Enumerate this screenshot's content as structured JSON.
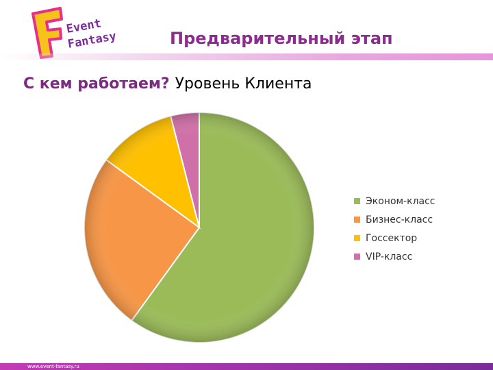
{
  "header": {
    "logo": {
      "text_line1": "Event",
      "text_line2": "Fantasy",
      "letter": "F"
    },
    "slide_title": "Предварительный этап"
  },
  "subtitle": {
    "bold": "С кем работаем?",
    "normal": "Уровень Клиента"
  },
  "chart_data": {
    "type": "pie",
    "categories": [
      "Эконом-класс",
      "Бизнес-класс",
      "Госсектор",
      "VIP-класс"
    ],
    "values": [
      60,
      25,
      11,
      4
    ],
    "colors": [
      "#9bbb59",
      "#f79646",
      "#ffc000",
      "#d070a8"
    ],
    "title": "",
    "legend_position": "right"
  },
  "footer": {
    "url": "www.event-fantasy.ru"
  }
}
